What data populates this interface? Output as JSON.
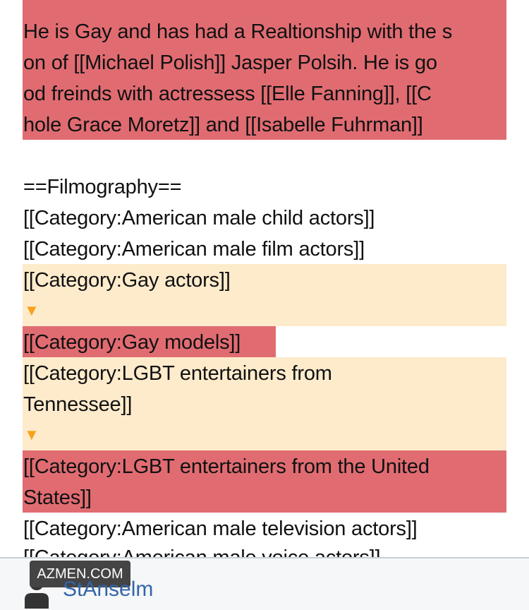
{
  "colors": {
    "removed": "#e06c72",
    "changed": "#feebcc",
    "arrow": "#f7a21b",
    "username": "#3366aa"
  },
  "diff": {
    "paragraph": [
      "He is Gay and has had a Realtionship with the s",
      "on of [[Michael Polish]] Jasper Polsih. He is go",
      "od freinds with actressess [[Elle Fanning]], [[C",
      "hole Grace Moretz]] and [[Isabelle Fuhrman]]"
    ],
    "heading": "==Filmography==",
    "cat1": "[[Category:American male child actors]]",
    "cat2": "[[Category:American male film actors]]",
    "cat3": "[[Category:Gay actors]]",
    "arrow": "▼",
    "cat4": "[[Category:Gay models]]",
    "cat5": [
      "[[Category:LGBT entertainers from",
      "Tennessee]]"
    ],
    "cat6": [
      "[[Category:LGBT entertainers from the United",
      "States]]"
    ],
    "cat7": "[[Category:American male television actors]]",
    "cat8": "[[Category:American male voice actors]]"
  },
  "footer": {
    "watermark": "AZMEN.COM",
    "username": "StAnselm",
    "avatar_icon": "user-icon"
  }
}
